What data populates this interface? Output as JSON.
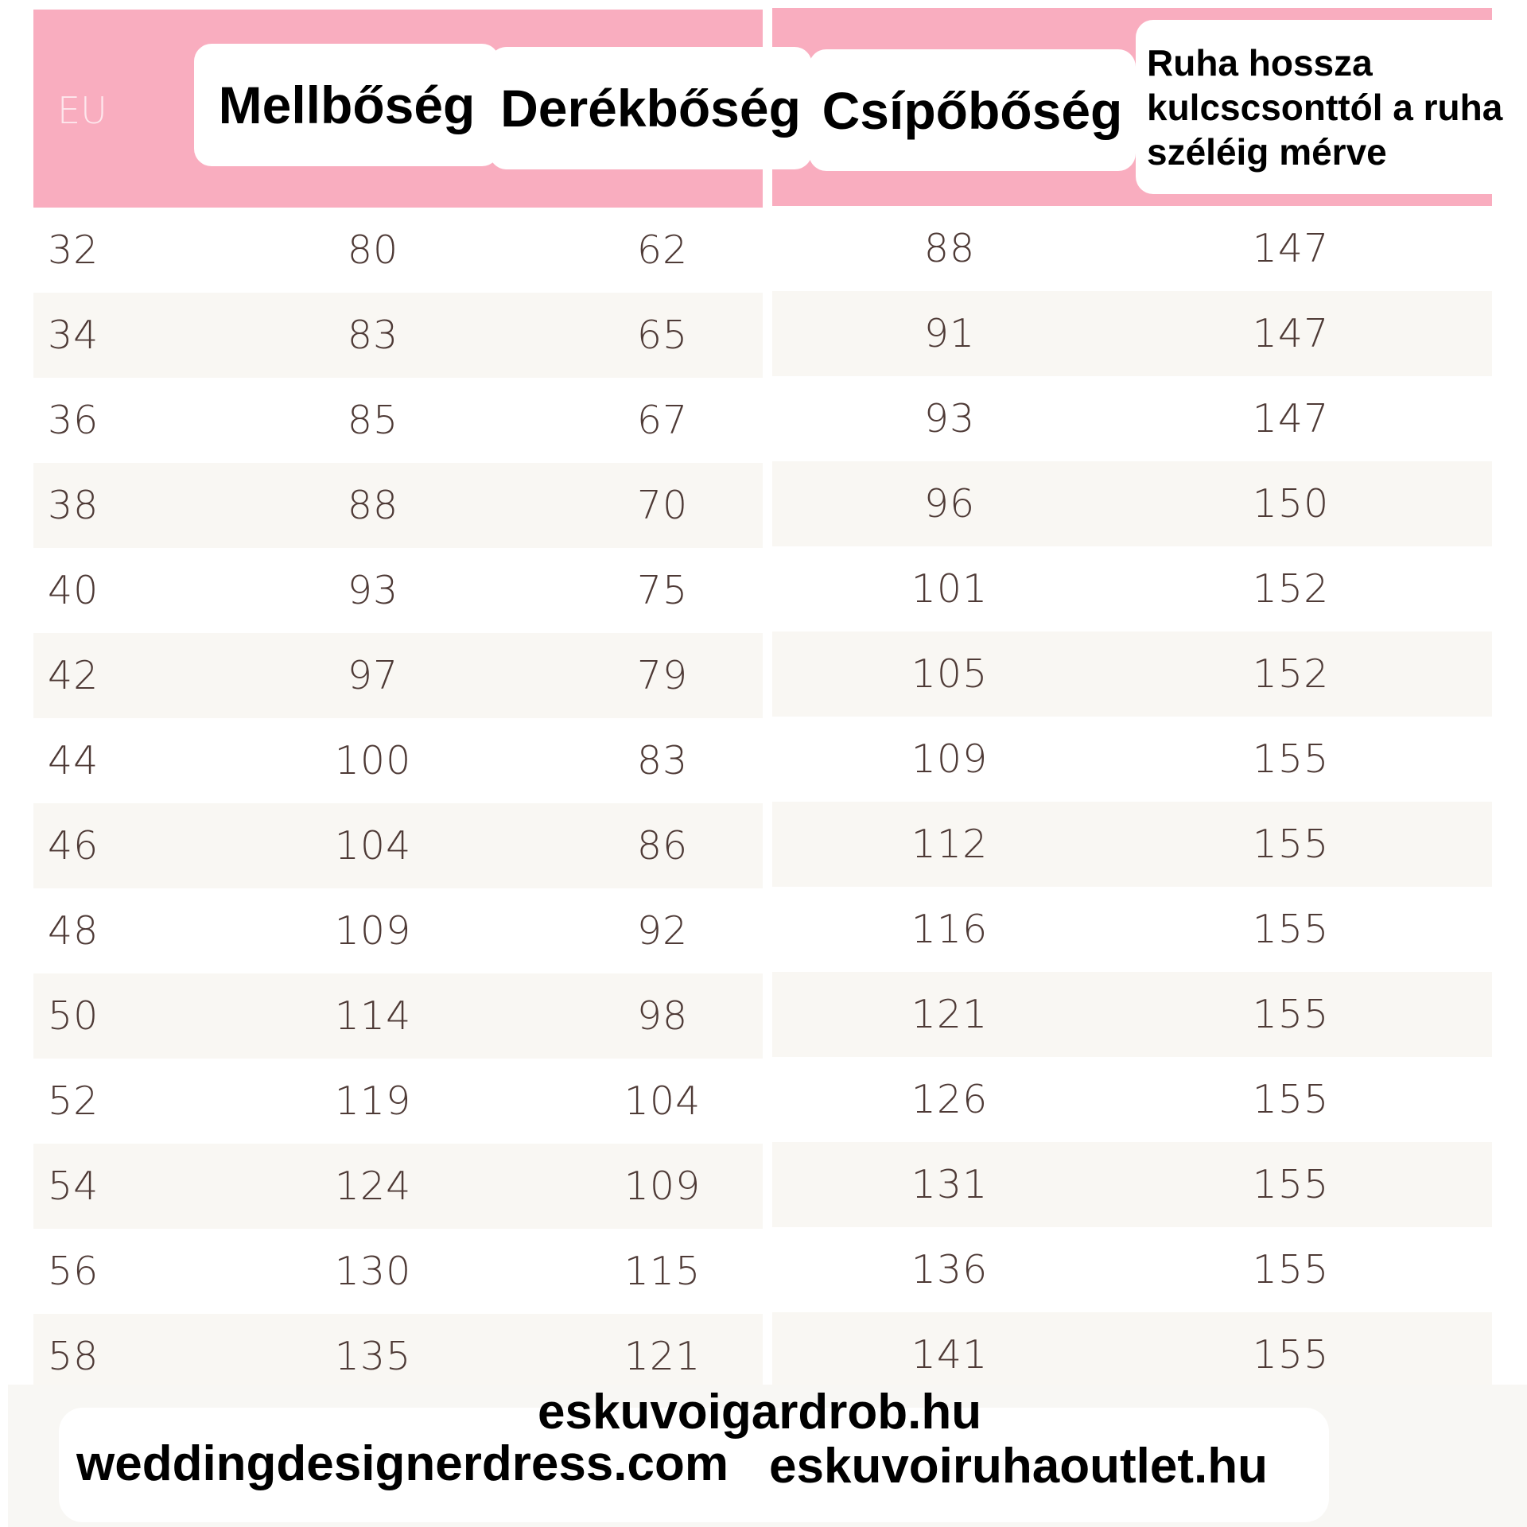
{
  "header": {
    "eu": "EU",
    "bust": "Mellbőség",
    "waist": "Derékbőség",
    "hip": "Csípőbőség",
    "length_line1": "Ruha hossza",
    "length_line2": "kulcscsonttól a ruha",
    "length_line3": "széléig mérve"
  },
  "colors": {
    "header_bg": "#f9adbf",
    "row_shade": "#f9f7f3",
    "number_text": "#4e3a36"
  },
  "rows": [
    [
      "32",
      "80",
      "62",
      "88",
      "147"
    ],
    [
      "34",
      "83",
      "65",
      "91",
      "147"
    ],
    [
      "36",
      "85",
      "67",
      "93",
      "147"
    ],
    [
      "38",
      "88",
      "70",
      "96",
      "150"
    ],
    [
      "40",
      "93",
      "75",
      "101",
      "152"
    ],
    [
      "42",
      "97",
      "79",
      "105",
      "152"
    ],
    [
      "44",
      "100",
      "83",
      "109",
      "155"
    ],
    [
      "46",
      "104",
      "86",
      "112",
      "155"
    ],
    [
      "48",
      "109",
      "92",
      "116",
      "155"
    ],
    [
      "50",
      "114",
      "98",
      "121",
      "155"
    ],
    [
      "52",
      "119",
      "104",
      "126",
      "155"
    ],
    [
      "54",
      "124",
      "109",
      "131",
      "155"
    ],
    [
      "56",
      "130",
      "115",
      "136",
      "155"
    ],
    [
      "58",
      "135",
      "121",
      "141",
      "155"
    ]
  ],
  "footer": {
    "site1": "eskuvoigardrob.hu",
    "site2": "weddingdesignerdress.com",
    "site3": "eskuvoiruhaoutlet.hu"
  }
}
